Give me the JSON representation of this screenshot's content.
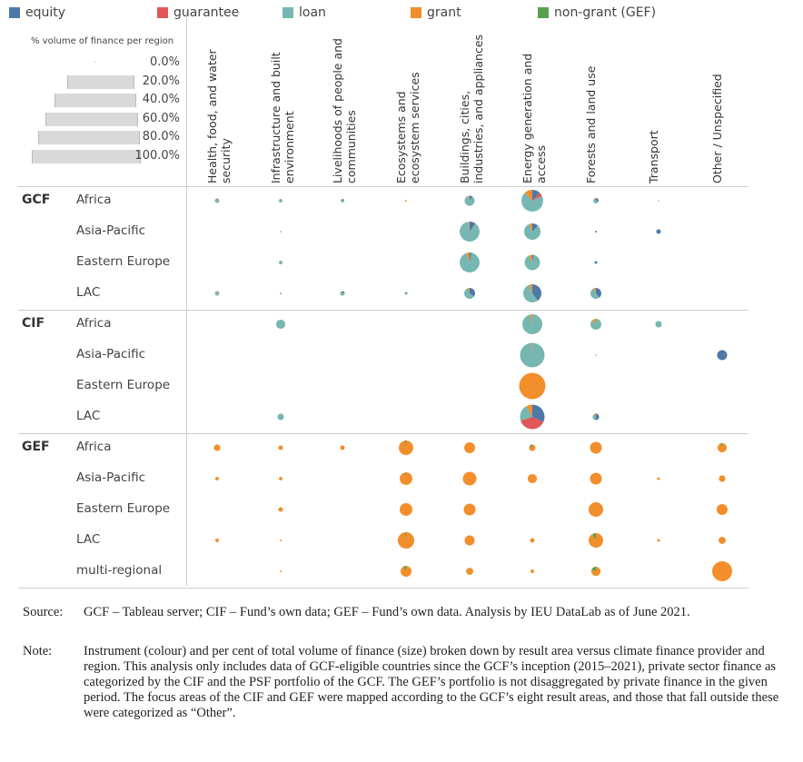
{
  "chart_data": {
    "type": "pie-matrix",
    "title": "",
    "legend": [
      {
        "name": "equity",
        "color": "#4e79a7"
      },
      {
        "name": "guarantee",
        "color": "#e15759"
      },
      {
        "name": "loan",
        "color": "#76b7b2"
      },
      {
        "name": "grant",
        "color": "#f28e2b"
      },
      {
        "name": "non-grant (GEF)",
        "color": "#59a14f"
      }
    ],
    "size_legend": {
      "title": "% volume of finance per region",
      "labels": [
        "0.0%",
        "20.0%",
        "40.0%",
        "60.0%",
        "80.0%",
        "100.0%"
      ]
    },
    "columns": [
      "Health, food, and water security",
      "Infrastructure and built environment",
      "Livelihoods of people and communities",
      "Ecosystems and ecosystem services",
      "Buildings, cities, industries, and appliances",
      "Energy generation and access",
      "Forests and land use",
      "Transport",
      "Other / Unspecified"
    ],
    "mix_order": [
      "equity",
      "guarantee",
      "loan",
      "grant",
      "non-grant (GEF)"
    ],
    "groups": [
      {
        "provider": "GCF",
        "rows": [
          {
            "region": "Africa",
            "cells": [
              {
                "col": 0,
                "pct": 2.5,
                "mix": [
                  0.1,
                  0,
                  0.75,
                  0.15,
                  0
                ]
              },
              {
                "col": 1,
                "pct": 1.5,
                "mix": [
                  0,
                  0,
                  1,
                  0,
                  0
                ]
              },
              {
                "col": 2,
                "pct": 1.5,
                "mix": [
                  0.2,
                  0,
                  0.8,
                  0,
                  0
                ]
              },
              {
                "col": 3,
                "pct": 0.4,
                "mix": [
                  0,
                  0,
                  0,
                  1,
                  0
                ]
              },
              {
                "col": 4,
                "pct": 12,
                "mix": [
                  0.1,
                  0,
                  0.85,
                  0.05,
                  0
                ]
              },
              {
                "col": 5,
                "pct": 56,
                "mix": [
                  0.12,
                  0.06,
                  0.7,
                  0.12,
                  0
                ]
              },
              {
                "col": 6,
                "pct": 3.5,
                "mix": [
                  0.3,
                  0,
                  0.6,
                  0.1,
                  0
                ]
              },
              {
                "col": 7,
                "pct": 0.2,
                "mix": [
                  0,
                  0,
                  1,
                  0,
                  0
                ]
              }
            ]
          },
          {
            "region": "Asia-Pacific",
            "cells": [
              {
                "col": 1,
                "pct": 0.3,
                "mix": [
                  0,
                  0,
                  1,
                  0,
                  0
                ]
              },
              {
                "col": 4,
                "pct": 47,
                "mix": [
                  0.1,
                  0,
                  0.88,
                  0.02,
                  0
                ]
              },
              {
                "col": 5,
                "pct": 32,
                "mix": [
                  0.12,
                  0,
                  0.82,
                  0.06,
                  0
                ]
              },
              {
                "col": 6,
                "pct": 0.4,
                "mix": [
                  1,
                  0,
                  0,
                  0,
                  0
                ]
              },
              {
                "col": 7,
                "pct": 2.5,
                "mix": [
                  1,
                  0,
                  0,
                  0,
                  0
                ]
              }
            ]
          },
          {
            "region": "Eastern Europe",
            "cells": [
              {
                "col": 1,
                "pct": 1.5,
                "mix": [
                  0,
                  0,
                  1,
                  0,
                  0
                ]
              },
              {
                "col": 4,
                "pct": 47,
                "mix": [
                  0.03,
                  0,
                  0.92,
                  0.05,
                  0
                ]
              },
              {
                "col": 5,
                "pct": 28,
                "mix": [
                  0.03,
                  0,
                  0.9,
                  0.07,
                  0
                ]
              },
              {
                "col": 6,
                "pct": 0.9,
                "mix": [
                  1,
                  0,
                  0,
                  0,
                  0
                ]
              }
            ]
          },
          {
            "region": "LAC",
            "cells": [
              {
                "col": 0,
                "pct": 2.5,
                "mix": [
                  0,
                  0,
                  0.85,
                  0.15,
                  0
                ]
              },
              {
                "col": 1,
                "pct": 0.4,
                "mix": [
                  0,
                  0,
                  1,
                  0,
                  0
                ]
              },
              {
                "col": 2,
                "pct": 2.5,
                "mix": [
                  0.2,
                  0,
                  0.7,
                  0.1,
                  0
                ]
              },
              {
                "col": 3,
                "pct": 0.9,
                "mix": [
                  0.3,
                  0,
                  0.7,
                  0,
                  0
                ]
              },
              {
                "col": 4,
                "pct": 14,
                "mix": [
                  0.35,
                  0,
                  0.6,
                  0.05,
                  0
                ]
              },
              {
                "col": 5,
                "pct": 39,
                "mix": [
                  0.4,
                  0,
                  0.55,
                  0.05,
                  0
                ]
              },
              {
                "col": 6,
                "pct": 14,
                "mix": [
                  0.4,
                  0,
                  0.55,
                  0.05,
                  0
                ]
              }
            ]
          }
        ]
      },
      {
        "provider": "CIF",
        "rows": [
          {
            "region": "Africa",
            "cells": [
              {
                "col": 1,
                "pct": 10,
                "mix": [
                  0,
                  0,
                  1,
                  0,
                  0
                ]
              },
              {
                "col": 5,
                "pct": 47,
                "mix": [
                  0,
                  0,
                  0.97,
                  0.03,
                  0
                ]
              },
              {
                "col": 6,
                "pct": 14,
                "mix": [
                  0,
                  0,
                  0.9,
                  0.1,
                  0
                ]
              },
              {
                "col": 7,
                "pct": 5,
                "mix": [
                  0,
                  0,
                  1,
                  0,
                  0
                ]
              }
            ]
          },
          {
            "region": "Asia-Pacific",
            "cells": [
              {
                "col": 5,
                "pct": 71,
                "mix": [
                  0,
                  0,
                  0.99,
                  0.01,
                  0
                ]
              },
              {
                "col": 6,
                "pct": 0.1,
                "mix": [
                  0,
                  0,
                  0,
                  1,
                  0
                ]
              },
              {
                "col": 8,
                "pct": 12,
                "mix": [
                  1,
                  0,
                  0,
                  0,
                  0
                ]
              }
            ]
          },
          {
            "region": "Eastern Europe",
            "cells": [
              {
                "col": 5,
                "pct": 82,
                "mix": [
                  0,
                  0,
                  0,
                  1,
                  0
                ]
              }
            ]
          },
          {
            "region": "LAC",
            "cells": [
              {
                "col": 1,
                "pct": 5,
                "mix": [
                  0,
                  0,
                  1,
                  0,
                  0
                ]
              },
              {
                "col": 5,
                "pct": 71,
                "mix": [
                  0.32,
                  0.38,
                  0.22,
                  0.08,
                  0
                ]
              },
              {
                "col": 6,
                "pct": 5,
                "mix": [
                  0.5,
                  0,
                  0.4,
                  0.1,
                  0
                ]
              }
            ]
          }
        ]
      },
      {
        "provider": "GEF",
        "rows": [
          {
            "region": "Africa",
            "cells": [
              {
                "col": 0,
                "pct": 5,
                "mix": [
                  0,
                  0,
                  0,
                  1,
                  0
                ]
              },
              {
                "col": 1,
                "pct": 2.5,
                "mix": [
                  0,
                  0,
                  0,
                  1,
                  0
                ]
              },
              {
                "col": 2,
                "pct": 2.5,
                "mix": [
                  0,
                  0,
                  0,
                  1,
                  0
                ]
              },
              {
                "col": 3,
                "pct": 25,
                "mix": [
                  0,
                  0,
                  0,
                  0.97,
                  0.03
                ]
              },
              {
                "col": 4,
                "pct": 14,
                "mix": [
                  0,
                  0,
                  0,
                  1,
                  0
                ]
              },
              {
                "col": 5,
                "pct": 5,
                "mix": [
                  0,
                  0,
                  0,
                  0.85,
                  0.15
                ]
              },
              {
                "col": 6,
                "pct": 16.5,
                "mix": [
                  0,
                  0,
                  0,
                  1,
                  0
                ]
              },
              {
                "col": 8,
                "pct": 10,
                "mix": [
                  0,
                  0,
                  0,
                  0.94,
                  0.06
                ]
              }
            ]
          },
          {
            "region": "Asia-Pacific",
            "cells": [
              {
                "col": 0,
                "pct": 1.5,
                "mix": [
                  0,
                  0,
                  0,
                  1,
                  0
                ]
              },
              {
                "col": 1,
                "pct": 1.5,
                "mix": [
                  0,
                  0,
                  0,
                  1,
                  0
                ]
              },
              {
                "col": 3,
                "pct": 19,
                "mix": [
                  0,
                  0,
                  0,
                  0.98,
                  0.02
                ]
              },
              {
                "col": 4,
                "pct": 22,
                "mix": [
                  0,
                  0,
                  0,
                  1,
                  0
                ]
              },
              {
                "col": 5,
                "pct": 10,
                "mix": [
                  0,
                  0,
                  0,
                  1,
                  0
                ]
              },
              {
                "col": 6,
                "pct": 16.5,
                "mix": [
                  0,
                  0,
                  0,
                  1,
                  0
                ]
              },
              {
                "col": 7,
                "pct": 0.9,
                "mix": [
                  0,
                  0,
                  0,
                  1,
                  0
                ]
              },
              {
                "col": 8,
                "pct": 5,
                "mix": [
                  0,
                  0,
                  0,
                  1,
                  0
                ]
              }
            ]
          },
          {
            "region": "Eastern Europe",
            "cells": [
              {
                "col": 1,
                "pct": 2.5,
                "mix": [
                  0,
                  0,
                  0,
                  1,
                  0
                ]
              },
              {
                "col": 3,
                "pct": 19,
                "mix": [
                  0,
                  0,
                  0,
                  1,
                  0
                ]
              },
              {
                "col": 4,
                "pct": 16.5,
                "mix": [
                  0,
                  0,
                  0,
                  1,
                  0
                ]
              },
              {
                "col": 6,
                "pct": 25,
                "mix": [
                  0,
                  0,
                  0,
                  1,
                  0
                ]
              },
              {
                "col": 8,
                "pct": 14,
                "mix": [
                  0,
                  0,
                  0,
                  1,
                  0
                ]
              }
            ]
          },
          {
            "region": "LAC",
            "cells": [
              {
                "col": 0,
                "pct": 1.5,
                "mix": [
                  0,
                  0,
                  0,
                  1,
                  0
                ]
              },
              {
                "col": 1,
                "pct": 0.4,
                "mix": [
                  0,
                  0,
                  0,
                  1,
                  0
                ]
              },
              {
                "col": 3,
                "pct": 32,
                "mix": [
                  0,
                  0,
                  0,
                  0.98,
                  0.02
                ]
              },
              {
                "col": 4,
                "pct": 12,
                "mix": [
                  0,
                  0,
                  0,
                  1,
                  0
                ]
              },
              {
                "col": 5,
                "pct": 2.5,
                "mix": [
                  0,
                  0,
                  0,
                  1,
                  0
                ]
              },
              {
                "col": 6,
                "pct": 25,
                "mix": [
                  0,
                  0,
                  0,
                  0.92,
                  0.08
                ]
              },
              {
                "col": 7,
                "pct": 0.9,
                "mix": [
                  0,
                  0,
                  0,
                  1,
                  0
                ]
              },
              {
                "col": 8,
                "pct": 6,
                "mix": [
                  0,
                  0,
                  0,
                  1,
                  0
                ]
              }
            ]
          },
          {
            "region": "multi-regional",
            "cells": [
              {
                "col": 1,
                "pct": 0.4,
                "mix": [
                  0,
                  0,
                  0,
                  1,
                  0
                ]
              },
              {
                "col": 3,
                "pct": 14,
                "mix": [
                  0,
                  0,
                  0,
                  0.92,
                  0.08
                ]
              },
              {
                "col": 4,
                "pct": 6,
                "mix": [
                  0,
                  0,
                  0,
                  1,
                  0
                ]
              },
              {
                "col": 5,
                "pct": 1.5,
                "mix": [
                  0,
                  0,
                  0,
                  1,
                  0
                ]
              },
              {
                "col": 6,
                "pct": 10,
                "mix": [
                  0,
                  0,
                  0,
                  0.8,
                  0.2
                ]
              },
              {
                "col": 8,
                "pct": 47,
                "mix": [
                  0,
                  0,
                  0,
                  1,
                  0
                ]
              }
            ]
          }
        ]
      }
    ]
  },
  "footnote": {
    "source_label": "Source:",
    "source_text": "GCF – Tableau server; CIF – Fund’s own data; GEF – Fund’s own data. Analysis by IEU DataLab as of June 2021.",
    "note_label": "Note:",
    "note_text": "Instrument (colour) and per cent of total volume of finance (size) broken down by result area versus climate finance provider and region. This analysis only includes data of GCF-eligible countries since the GCF’s inception (2015–2021), private sector finance as categorized by the CIF and the PSF portfolio of the GCF. The GEF’s portfolio is not disaggregated by private finance in the given period. The focus areas of the CIF and GEF were mapped according to the GCF’s eight result areas, and those that fall outside these were categorized as “Other”."
  }
}
